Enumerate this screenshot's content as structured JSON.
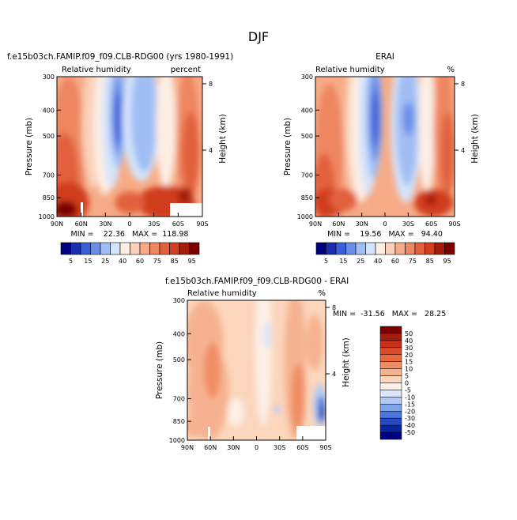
{
  "season": "DJF",
  "chart_data": [
    {
      "type": "heatmap",
      "title": "f.e15b03ch.FAMIP.f09_f09.CLB-RDG00 (yrs 1980-1991)",
      "subtitle_left": "Relative humidity",
      "subtitle_right": "percent",
      "ylabel": "Pressure (mb)",
      "ylabel_right": "Height (km)",
      "x_ticks": [
        "90N",
        "60N",
        "30N",
        "0",
        "30S",
        "60S",
        "90S"
      ],
      "y_ticks": [
        "300",
        "400",
        "500",
        "700",
        "850",
        "1000"
      ],
      "y_ticks_right": [
        "8",
        "4"
      ],
      "ylim": [
        1000,
        300
      ],
      "y_scale": "log",
      "stats": "MIN =    22.36   MAX =  118.98",
      "colorbar_labels": [
        "5",
        "15",
        "25",
        "40",
        "60",
        "75",
        "85",
        "95"
      ]
    },
    {
      "type": "heatmap",
      "title": "ERAI",
      "subtitle_left": "Relative humidity",
      "subtitle_right": "%",
      "ylabel": "Pressure (mb)",
      "ylabel_right": "Height (km)",
      "x_ticks": [
        "90N",
        "60N",
        "30N",
        "0",
        "30S",
        "60S",
        "90S"
      ],
      "y_ticks": [
        "300",
        "400",
        "500",
        "700",
        "850",
        "1000"
      ],
      "y_ticks_right": [
        "8",
        "4"
      ],
      "ylim": [
        1000,
        300
      ],
      "y_scale": "log",
      "stats": "MIN =    19.56   MAX =   94.40",
      "colorbar_labels": [
        "5",
        "15",
        "25",
        "40",
        "60",
        "75",
        "85",
        "95"
      ]
    },
    {
      "type": "heatmap",
      "title": "f.e15b03ch.FAMIP.f09_f09.CLB-RDG00 - ERAI",
      "subtitle_left": "Relative humidity",
      "subtitle_right": "%",
      "ylabel": "Pressure (mb)",
      "ylabel_right": "Height (km)",
      "x_ticks": [
        "90N",
        "60N",
        "30N",
        "0",
        "30S",
        "60S",
        "90S"
      ],
      "y_ticks": [
        "300",
        "400",
        "500",
        "700",
        "850",
        "1000"
      ],
      "y_ticks_right": [
        "8",
        "4"
      ],
      "ylim": [
        1000,
        300
      ],
      "y_scale": "log",
      "stats": "MIN =  -31.56   MAX =   28.25",
      "colorbar_labels": [
        "50",
        "40",
        "30",
        "20",
        "15",
        "10",
        "5",
        "0",
        "-5",
        "-10",
        "-15",
        "-20",
        "-30",
        "-40",
        "-50"
      ]
    }
  ],
  "colors": {
    "abs_scale": [
      "#00007f",
      "#1a2fb0",
      "#3b5fd6",
      "#6a8ee8",
      "#a0bdf4",
      "#d4e4fb",
      "#fdeee4",
      "#fbd0b8",
      "#f6ab86",
      "#ee8660",
      "#e2603c",
      "#d03e1f",
      "#a51b0c",
      "#7a0000"
    ],
    "diff_scale": [
      "#7a0000",
      "#a51b0c",
      "#c8301a",
      "#dc4a2a",
      "#e8693f",
      "#f08d64",
      "#f6b290",
      "#fbd6bd",
      "#fdf0e6",
      "#dbe6fb",
      "#b3caf5",
      "#7fa4ec",
      "#4c76df",
      "#2549c4",
      "#0b24a0",
      "#000080"
    ]
  }
}
